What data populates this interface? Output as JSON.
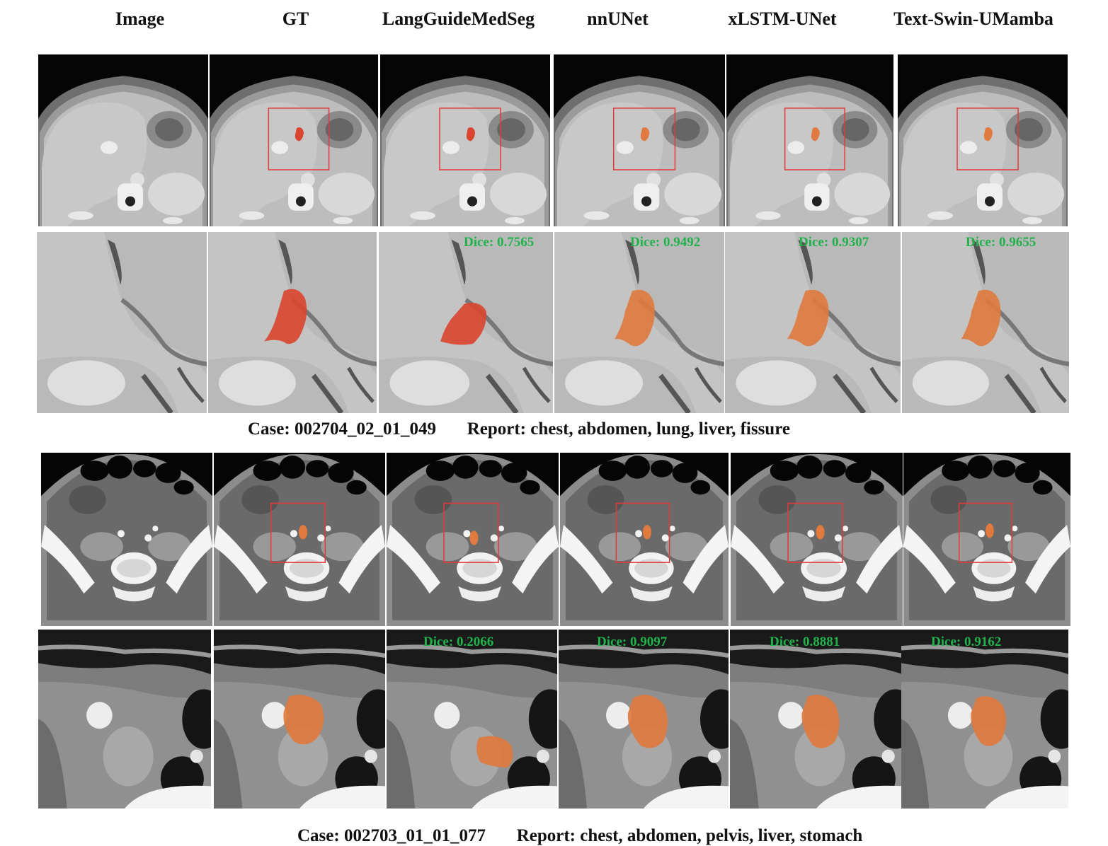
{
  "columns": [
    "Image",
    "GT",
    "LangGuideMedSeg",
    "nnUNet",
    "xLSTM-UNet",
    "Text-Swin-UMamba"
  ],
  "cases": [
    {
      "caption": "Case: 002704_02_01_049       Report: chest, abdomen, lung, liver, fissure",
      "dice": [
        "Dice: 0.7565",
        "Dice: 0.9492",
        "Dice: 0.9307",
        "Dice: 0.9655"
      ]
    },
    {
      "caption": "Case: 002703_01_01_077       Report: chest, abdomen, pelvis, liver, stomach",
      "dice": [
        "Dice: 0.2066",
        "Dice: 0.9097",
        "Dice: 0.8881",
        "Dice: 0.9162"
      ]
    }
  ],
  "colors": {
    "gt_mask": "#d9452e",
    "pred_mask_case1": "#d9452e",
    "pred_mask_other": "#e07a3e",
    "roi_box": "#e23a3a",
    "dice_text": "#22b24c"
  }
}
